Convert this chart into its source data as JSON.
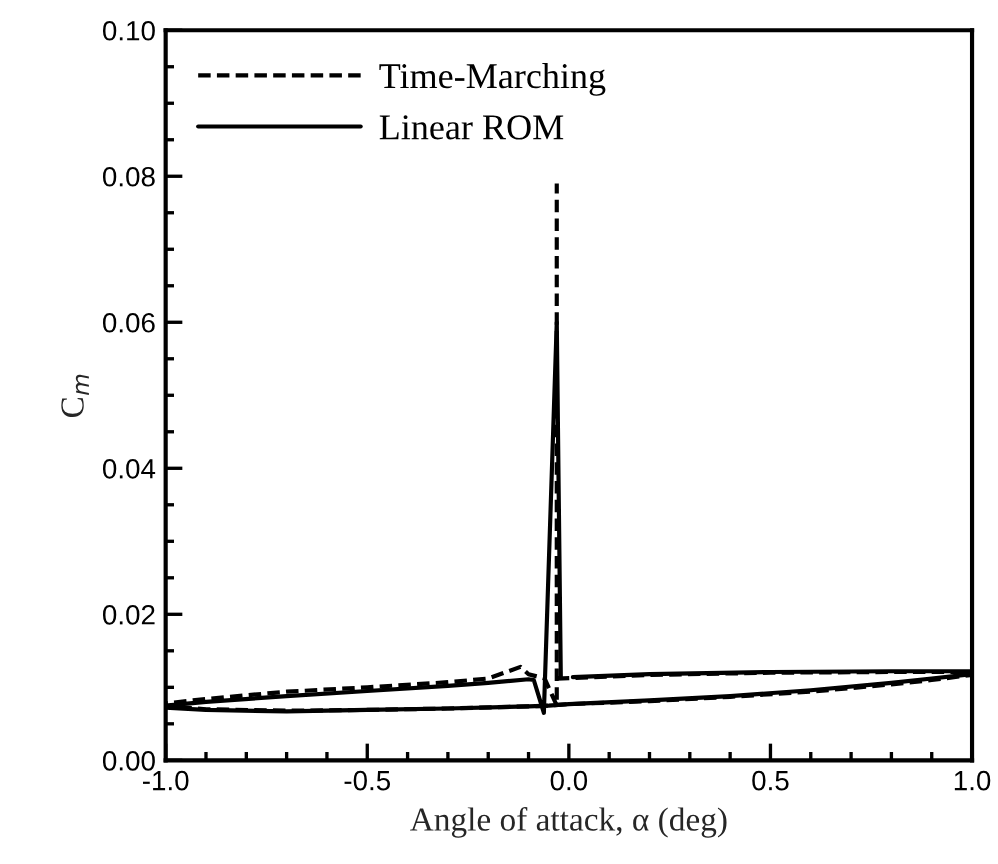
{
  "chart_data": {
    "type": "line",
    "xlabel": "Angle of attack, α (deg)",
    "ylabel": "C$_{m}$",
    "xlim": [
      -1.0,
      1.0
    ],
    "xticks": [
      {
        "value": -1.0,
        "label": "-1.0"
      },
      {
        "value": -0.5,
        "label": "-0.5"
      },
      {
        "value": 0.0,
        "label": "0.0"
      },
      {
        "value": 0.5,
        "label": "0.5"
      },
      {
        "value": 1.0,
        "label": "1.0"
      }
    ],
    "ylim": [
      0.0,
      0.1
    ],
    "yticks": [
      {
        "value": 0.0,
        "label": "0.00"
      },
      {
        "value": 0.02,
        "label": "0.02"
      },
      {
        "value": 0.04,
        "label": "0.04"
      },
      {
        "value": 0.06,
        "label": "0.06"
      },
      {
        "value": 0.08,
        "label": "0.08"
      },
      {
        "value": 0.1,
        "label": "0.10"
      }
    ],
    "grid": false,
    "legend": "top left",
    "series": [
      {
        "name": "Time-Marching",
        "color": "#000000",
        "line_style": "dashed",
        "x": [
          -0.03,
          0.2,
          0.5,
          0.8,
          1.0,
          1.0,
          0.9,
          0.8,
          0.6,
          0.4,
          0.2,
          0.0,
          -0.05,
          -0.1,
          -0.3,
          -0.5,
          -0.7,
          -0.9,
          -1.0,
          -1.0,
          -0.9,
          -0.7,
          -0.5,
          -0.3,
          -0.2,
          -0.12,
          -0.1,
          -0.06,
          -0.03,
          -0.03
        ],
        "values": [
          0.0112,
          0.0117,
          0.012,
          0.0121,
          0.0121,
          0.0117,
          0.011,
          0.0104,
          0.0094,
          0.0087,
          0.0081,
          0.0077,
          0.0075,
          0.0074,
          0.0071,
          0.0069,
          0.0068,
          0.007,
          0.0074,
          0.0078,
          0.0084,
          0.0094,
          0.01,
          0.0107,
          0.0112,
          0.0128,
          0.0118,
          0.0112,
          0.0075,
          0.079
        ]
      },
      {
        "name": "Linear ROM",
        "color": "#000000",
        "line_style": "solid",
        "x": [
          0.01,
          0.2,
          0.5,
          0.8,
          1.0,
          1.0,
          0.9,
          0.8,
          0.6,
          0.4,
          0.2,
          0.0,
          -0.05,
          -0.1,
          -0.3,
          -0.5,
          -0.7,
          -0.9,
          -1.0,
          -1.0,
          -0.9,
          -0.7,
          -0.5,
          -0.3,
          -0.2,
          -0.1,
          -0.087,
          -0.062,
          -0.03,
          -0.02
        ],
        "values": [
          0.0114,
          0.0118,
          0.0121,
          0.0122,
          0.0122,
          0.0118,
          0.0112,
          0.0106,
          0.0096,
          0.0088,
          0.0082,
          0.0077,
          0.0075,
          0.0074,
          0.0071,
          0.0069,
          0.0067,
          0.0069,
          0.0072,
          0.0075,
          0.008,
          0.0088,
          0.0095,
          0.0102,
          0.0106,
          0.0111,
          0.011,
          0.0065,
          0.06,
          0.0114
        ]
      }
    ]
  }
}
